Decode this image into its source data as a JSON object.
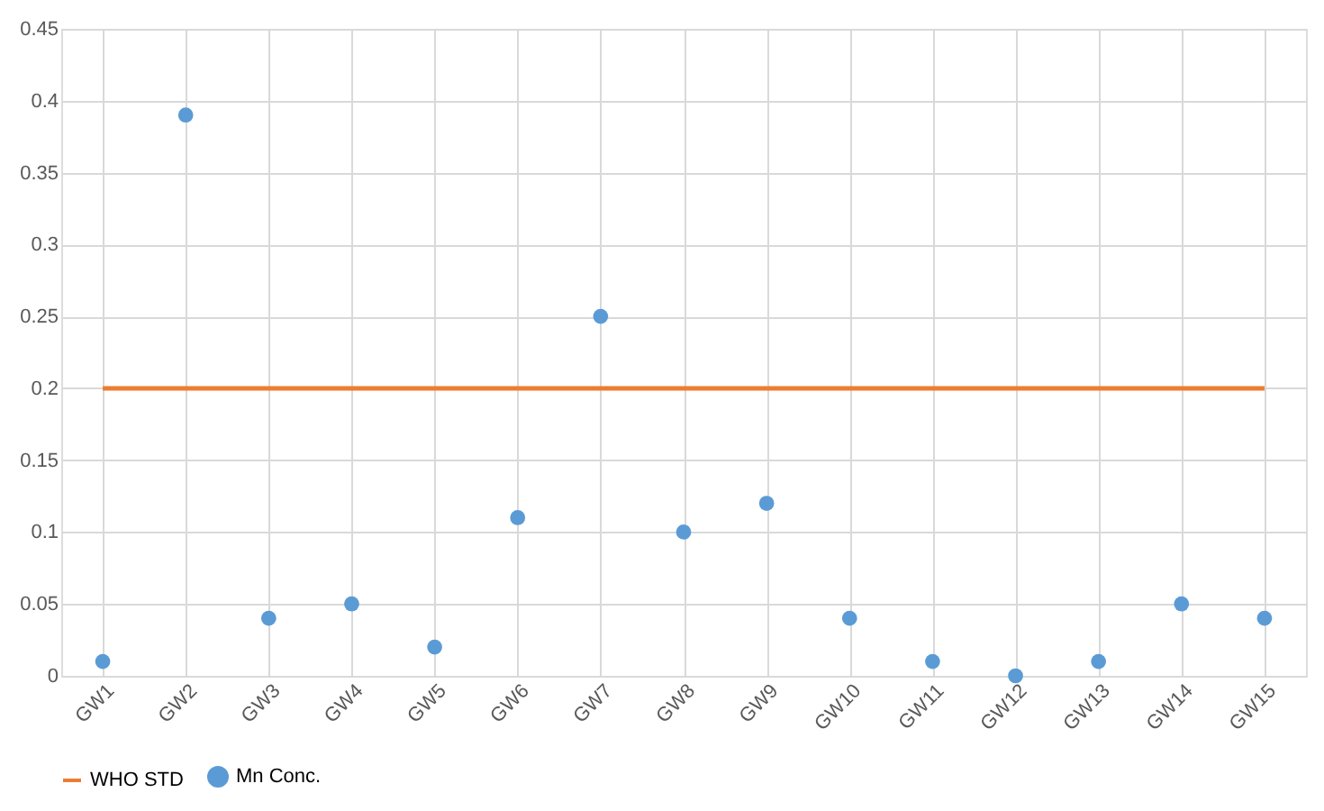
{
  "chart_data": {
    "type": "scatter",
    "categories": [
      "GW1",
      "GW2",
      "GW3",
      "GW4",
      "GW5",
      "GW6",
      "GW7",
      "GW8",
      "GW9",
      "GW10",
      "GW11",
      "GW12",
      "GW13",
      "GW14",
      "GW15"
    ],
    "series": [
      {
        "name": "WHO STD",
        "type": "line",
        "color": "#ed7d31",
        "values": [
          0.2,
          0.2,
          0.2,
          0.2,
          0.2,
          0.2,
          0.2,
          0.2,
          0.2,
          0.2,
          0.2,
          0.2,
          0.2,
          0.2,
          0.2
        ]
      },
      {
        "name": "Mn Conc.",
        "color": "#5b9bd5",
        "marker": "circle",
        "values": [
          0.01,
          0.39,
          0.04,
          0.05,
          0.02,
          0.11,
          0.25,
          0.1,
          0.12,
          0.04,
          0.01,
          0.0,
          0.01,
          0.05,
          0.04
        ]
      }
    ],
    "ylim": [
      0,
      0.45
    ],
    "yticks": [
      0,
      0.05,
      0.1,
      0.15,
      0.2,
      0.25,
      0.3,
      0.35,
      0.4,
      0.45
    ],
    "grid": true,
    "legend": "bottom"
  }
}
